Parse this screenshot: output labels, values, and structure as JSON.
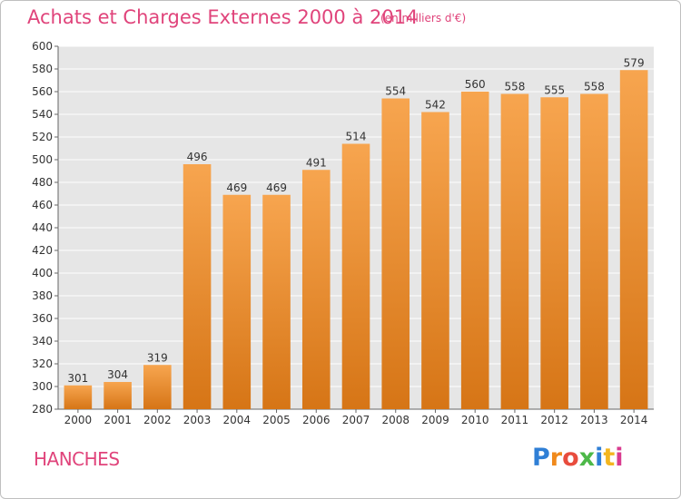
{
  "header": {
    "title": "Achats et Charges Externes 2000 à 2014",
    "subtitle": "(en milliers d'€)"
  },
  "footer": {
    "town": "HANCHES",
    "logo_letters": [
      "P",
      "r",
      "o",
      "x",
      "i",
      "t",
      "i"
    ]
  },
  "colors": {
    "title": "#e0447b",
    "bar_top": "#f7a54f",
    "bar_bottom": "#d67516",
    "plot_bg": "#e6e6e6",
    "grid": "#ffffff"
  },
  "chart_data": {
    "type": "bar",
    "title": "Achats et Charges Externes 2000 à 2014",
    "subtitle": "(en milliers d'€)",
    "xlabel": "",
    "ylabel": "",
    "categories": [
      "2000",
      "2001",
      "2002",
      "2003",
      "2004",
      "2005",
      "2006",
      "2007",
      "2008",
      "2009",
      "2010",
      "2011",
      "2012",
      "2013",
      "2014"
    ],
    "values": [
      301,
      304,
      319,
      496,
      469,
      469,
      491,
      514,
      554,
      542,
      560,
      558,
      555,
      558,
      579
    ],
    "ylim": [
      280,
      600
    ],
    "yticks": [
      280,
      300,
      320,
      340,
      360,
      380,
      400,
      420,
      440,
      460,
      480,
      500,
      520,
      540,
      560,
      580,
      600
    ],
    "grid": true,
    "data_labels": true
  }
}
